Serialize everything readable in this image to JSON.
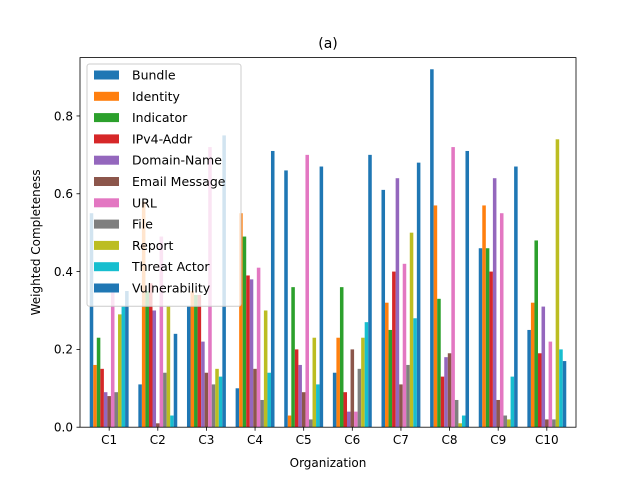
{
  "chart_data": {
    "type": "bar",
    "title": "(a)",
    "xlabel": "Organization",
    "ylabel": "Weighted Completeness",
    "ylim": [
      0,
      0.95
    ],
    "yticks": [
      0.0,
      0.2,
      0.4,
      0.6,
      0.8
    ],
    "ytick_labels": [
      "0.0",
      "0.2",
      "0.4",
      "0.6",
      "0.8"
    ],
    "grid": false,
    "legend_position": "upper-left",
    "categories": [
      "C1",
      "C2",
      "C3",
      "C4",
      "C5",
      "C6",
      "C7",
      "C8",
      "C9",
      "C10"
    ],
    "series": [
      {
        "name": "Bundle",
        "color": "#1f77b4",
        "values": [
          0.55,
          0.11,
          0.31,
          0.1,
          0.66,
          0.14,
          0.61,
          0.92,
          0.46,
          0.25
        ]
      },
      {
        "name": "Identity",
        "color": "#ff7f0e",
        "values": [
          0.16,
          0.58,
          0.35,
          0.55,
          0.03,
          0.23,
          0.32,
          0.57,
          0.57,
          0.32
        ]
      },
      {
        "name": "Indicator",
        "color": "#2ca02c",
        "values": [
          0.23,
          0.35,
          0.34,
          0.49,
          0.36,
          0.36,
          0.25,
          0.33,
          0.46,
          0.48
        ]
      },
      {
        "name": "IPv4-Addr",
        "color": "#d62728",
        "values": [
          0.15,
          0.37,
          0.34,
          0.39,
          0.2,
          0.09,
          0.4,
          0.13,
          0.4,
          0.19
        ]
      },
      {
        "name": "Domain-Name",
        "color": "#9467bd",
        "values": [
          0.09,
          0.3,
          0.22,
          0.38,
          0.16,
          0.04,
          0.64,
          0.18,
          0.64,
          0.31
        ]
      },
      {
        "name": "Email Message",
        "color": "#8c564b",
        "values": [
          0.08,
          0.01,
          0.14,
          0.15,
          0.09,
          0.2,
          0.11,
          0.19,
          0.07,
          0.02
        ]
      },
      {
        "name": "URL",
        "color": "#e377c2",
        "values": [
          0.36,
          0.49,
          0.72,
          0.41,
          0.7,
          0.04,
          0.42,
          0.72,
          0.55,
          0.22
        ]
      },
      {
        "name": "File",
        "color": "#7f7f7f",
        "values": [
          0.09,
          0.14,
          0.11,
          0.07,
          0.02,
          0.15,
          0.16,
          0.07,
          0.03,
          0.02
        ]
      },
      {
        "name": "Report",
        "color": "#bcbd22",
        "values": [
          0.29,
          0.31,
          0.15,
          0.3,
          0.23,
          0.23,
          0.5,
          0.01,
          0.02,
          0.74
        ]
      },
      {
        "name": "Threat Actor",
        "color": "#17becf",
        "values": [
          0.31,
          0.03,
          0.13,
          0.14,
          0.11,
          0.27,
          0.28,
          0.03,
          0.13,
          0.2
        ]
      },
      {
        "name": "Vulnerability",
        "color": "#1f77b4",
        "values": [
          0.35,
          0.24,
          0.75,
          0.71,
          0.67,
          0.7,
          0.68,
          0.71,
          0.67,
          0.17
        ]
      }
    ]
  }
}
